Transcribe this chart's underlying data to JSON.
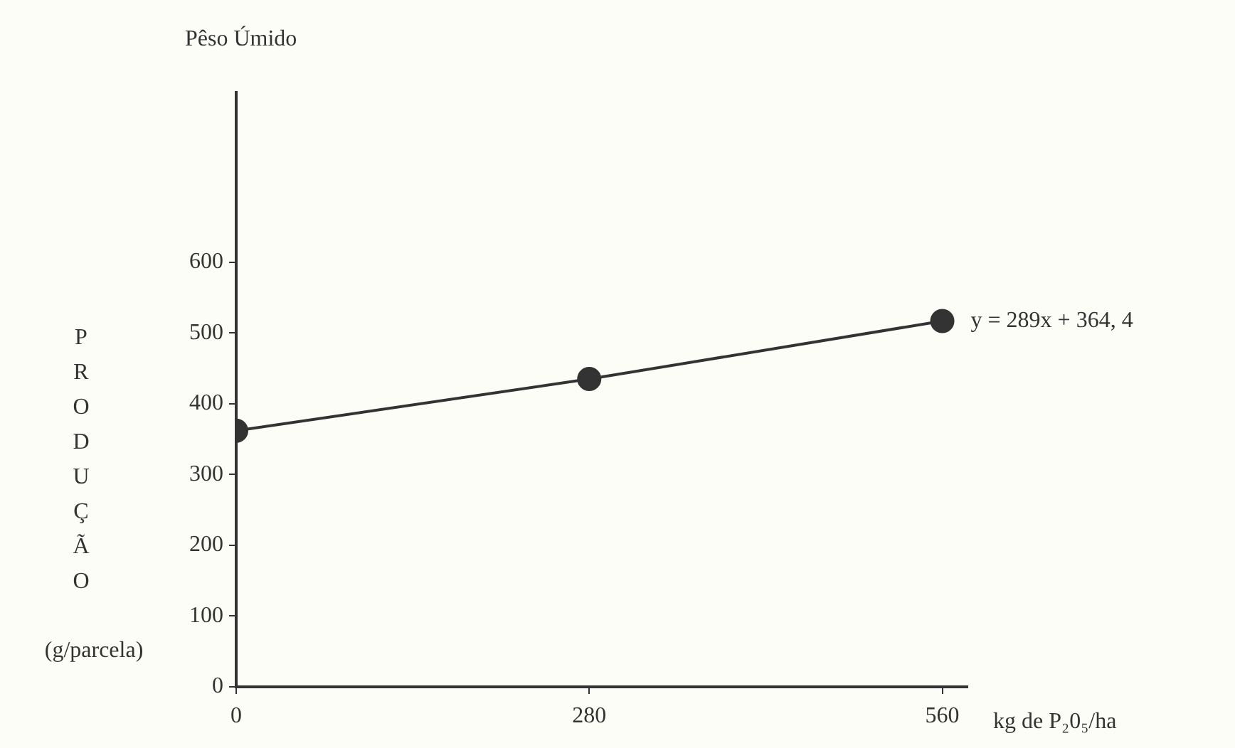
{
  "chart_data": {
    "type": "line",
    "title": "Pêso Úmido",
    "xlabel": "kg de P₂0₅/ha",
    "ylabel": "PRODUÇÃO (g/parcela)",
    "x": [
      0,
      280,
      560
    ],
    "series": [
      {
        "color": "#333333",
        "values": [
          362,
          435,
          517
        ]
      }
    ],
    "xlim": [
      0,
      580
    ],
    "xticks": [
      0,
      280,
      560
    ],
    "ylim": [
      0,
      840
    ],
    "yticks": [
      0,
      100,
      200,
      300,
      400,
      500,
      600
    ],
    "annotations": [
      {
        "text": "y = 289x + 364, 4",
        "x": 560,
        "y": 517
      }
    ],
    "marker": "circle",
    "line_style": "solid",
    "grid": false,
    "legend": false
  }
}
